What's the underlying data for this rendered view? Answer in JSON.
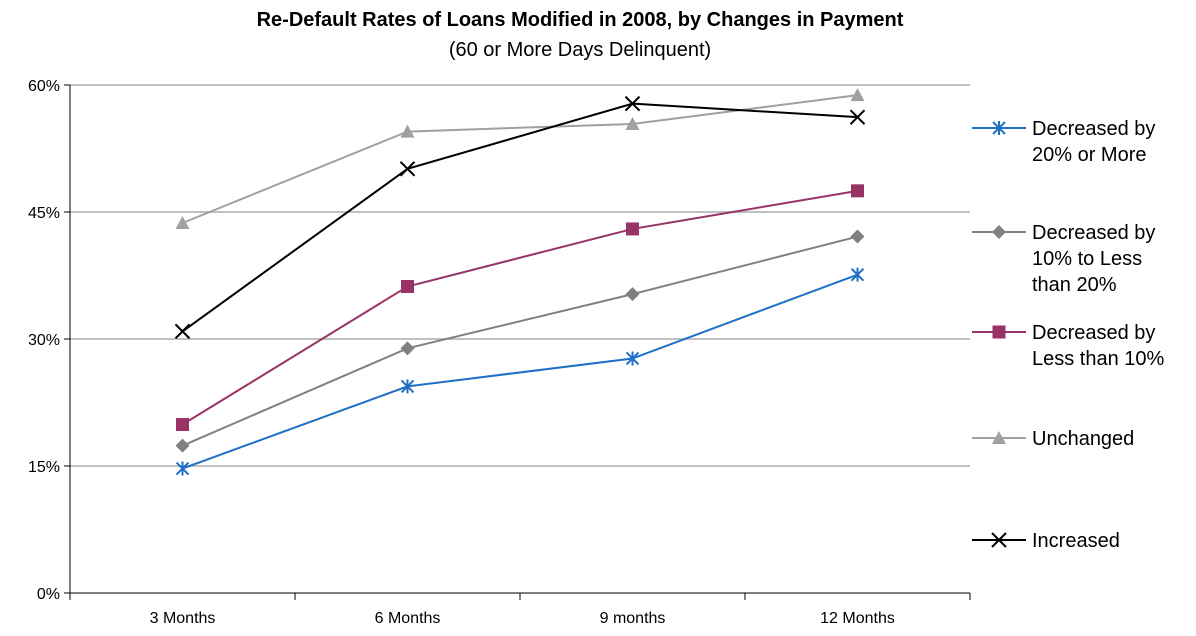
{
  "chart_data": {
    "type": "line",
    "title": "Re-Default Rates of Loans Modified in 2008, by Changes in Payment",
    "subtitle": "(60 or More Days Delinquent)",
    "categories": [
      "3 Months",
      "6 Months",
      "9 months",
      "12 Months"
    ],
    "ylim": [
      0,
      60
    ],
    "yticks": [
      0,
      15,
      30,
      45,
      60
    ],
    "ytick_labels": [
      "0%",
      "15%",
      "30%",
      "45%",
      "60%"
    ],
    "grid": true,
    "legend_position": "right",
    "series": [
      {
        "name_lines": [
          "Decreased by",
          "20% or More"
        ],
        "values": [
          14.7,
          24.4,
          27.7,
          37.6
        ],
        "color": "#1f6fc5",
        "marker": "asterisk"
      },
      {
        "name_lines": [
          "Decreased by",
          "10% to Less",
          "than 20%"
        ],
        "values": [
          17.4,
          28.9,
          35.3,
          42.1
        ],
        "color": "#808080",
        "marker": "diamond"
      },
      {
        "name_lines": [
          "Decreased by",
          "Less than 10%"
        ],
        "values": [
          19.9,
          36.2,
          43.0,
          47.5
        ],
        "color": "#993366",
        "marker": "square"
      },
      {
        "name_lines": [
          "Unchanged"
        ],
        "values": [
          43.7,
          54.5,
          55.4,
          58.8
        ],
        "color": "#a0a0a0",
        "marker": "triangle"
      },
      {
        "name_lines": [
          "Increased"
        ],
        "values": [
          30.9,
          50.1,
          57.8,
          56.2
        ],
        "color": "#000000",
        "marker": "x"
      }
    ]
  }
}
